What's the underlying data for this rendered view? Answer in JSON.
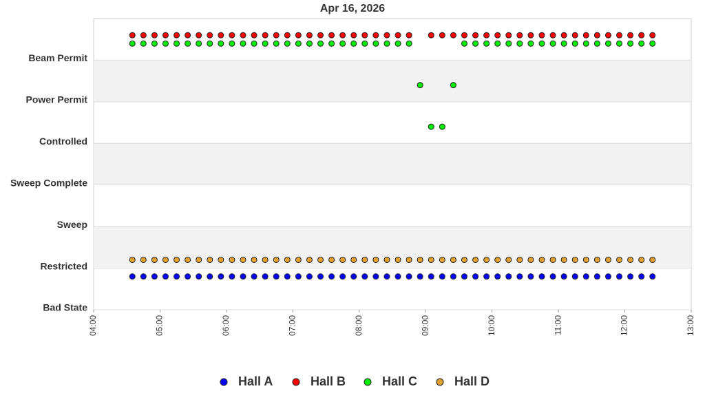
{
  "chart_data": {
    "type": "scatter",
    "title": "Apr 16, 2026",
    "x": [
      "04:35",
      "04:45",
      "04:55",
      "05:05",
      "05:15",
      "05:25",
      "05:35",
      "05:45",
      "05:55",
      "06:05",
      "06:15",
      "06:25",
      "06:35",
      "06:45",
      "06:55",
      "07:05",
      "07:15",
      "07:25",
      "07:35",
      "07:45",
      "07:55",
      "08:05",
      "08:15",
      "08:25",
      "08:35",
      "08:45",
      "08:55",
      "09:05",
      "09:15",
      "09:25",
      "09:35",
      "09:45",
      "09:55",
      "10:05",
      "10:15",
      "10:25",
      "10:35",
      "10:45",
      "10:55",
      "11:05",
      "11:15",
      "11:25",
      "11:35",
      "11:45",
      "11:55",
      "12:05",
      "12:15",
      "12:25"
    ],
    "series": [
      {
        "name": "Hall A",
        "color": "#0000ff",
        "values": [
          0.8,
          0.8,
          0.8,
          0.8,
          0.8,
          0.8,
          0.8,
          0.8,
          0.8,
          0.8,
          0.8,
          0.8,
          0.8,
          0.8,
          0.8,
          0.8,
          0.8,
          0.8,
          0.8,
          0.8,
          0.8,
          0.8,
          0.8,
          0.8,
          0.8,
          0.8,
          0.8,
          0.8,
          0.8,
          0.8,
          0.8,
          0.8,
          0.8,
          0.8,
          0.8,
          0.8,
          0.8,
          0.8,
          0.8,
          0.8,
          0.8,
          0.8,
          0.8,
          0.8,
          0.8,
          0.8,
          0.8,
          0.8
        ]
      },
      {
        "name": "Hall B",
        "color": "#ff0000",
        "values": [
          6.6,
          6.6,
          6.6,
          6.6,
          6.6,
          6.6,
          6.6,
          6.6,
          6.6,
          6.6,
          6.6,
          6.6,
          6.6,
          6.6,
          6.6,
          6.6,
          6.6,
          6.6,
          6.6,
          6.6,
          6.6,
          6.6,
          6.6,
          6.6,
          6.6,
          6.6,
          null,
          6.6,
          6.6,
          6.6,
          6.6,
          6.6,
          6.6,
          6.6,
          6.6,
          6.6,
          6.6,
          6.6,
          6.6,
          6.6,
          6.6,
          6.6,
          6.6,
          6.6,
          6.6,
          6.6,
          6.6,
          6.6
        ]
      },
      {
        "name": "Hall C",
        "color": "#00ee00",
        "values": [
          6.4,
          6.4,
          6.4,
          6.4,
          6.4,
          6.4,
          6.4,
          6.4,
          6.4,
          6.4,
          6.4,
          6.4,
          6.4,
          6.4,
          6.4,
          6.4,
          6.4,
          6.4,
          6.4,
          6.4,
          6.4,
          6.4,
          6.4,
          6.4,
          6.4,
          6.4,
          5.4,
          4.4,
          4.4,
          5.4,
          6.4,
          6.4,
          6.4,
          6.4,
          6.4,
          6.4,
          6.4,
          6.4,
          6.4,
          6.4,
          6.4,
          6.4,
          6.4,
          6.4,
          6.4,
          6.4,
          6.4,
          6.4
        ]
      },
      {
        "name": "Hall D",
        "color": "#e0a030",
        "values": [
          1.2,
          1.2,
          1.2,
          1.2,
          1.2,
          1.2,
          1.2,
          1.2,
          1.2,
          1.2,
          1.2,
          1.2,
          1.2,
          1.2,
          1.2,
          1.2,
          1.2,
          1.2,
          1.2,
          1.2,
          1.2,
          1.2,
          1.2,
          1.2,
          1.2,
          1.2,
          1.2,
          1.2,
          1.2,
          1.2,
          1.2,
          1.2,
          1.2,
          1.2,
          1.2,
          1.2,
          1.2,
          1.2,
          1.2,
          1.2,
          1.2,
          1.2,
          1.2,
          1.2,
          1.2,
          1.2,
          1.2,
          1.2
        ]
      }
    ],
    "xlim": [
      "04:00",
      "13:00"
    ],
    "xticks": [
      "04:00",
      "05:00",
      "06:00",
      "07:00",
      "08:00",
      "09:00",
      "10:00",
      "11:00",
      "12:00",
      "13:00"
    ],
    "ylim": [
      0,
      7
    ],
    "yticks": [
      {
        "value": 0,
        "label": "Bad State"
      },
      {
        "value": 1,
        "label": "Restricted"
      },
      {
        "value": 2,
        "label": "Sweep"
      },
      {
        "value": 3,
        "label": "Sweep Complete"
      },
      {
        "value": 4,
        "label": "Controlled"
      },
      {
        "value": 5,
        "label": "Power Permit"
      },
      {
        "value": 6,
        "label": "Beam Permit"
      }
    ],
    "grid": true,
    "legend": "bottom"
  }
}
